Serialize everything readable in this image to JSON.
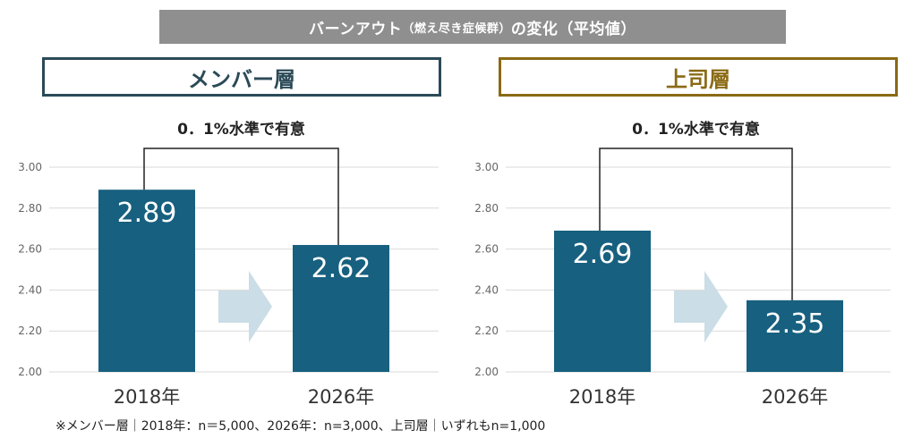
{
  "header": {
    "title_main": "バーンアウト",
    "title_small": "（燃え尽き症候群）",
    "title_tail": "の変化（平均値）"
  },
  "panels": {
    "member_label": "メンバー層",
    "boss_label": "上司層",
    "member_significance": "0．1%水準で有意",
    "boss_significance": "0．1%水準で有意"
  },
  "colors": {
    "bar": "#17607f",
    "arrow": "#cbdde6",
    "grid": "#d9d9d9",
    "member_accent": "#2b4a57",
    "boss_accent": "#8a6a14"
  },
  "chart_data": [
    {
      "type": "bar",
      "title": "メンバー層",
      "categories": [
        "2018年",
        "2026年"
      ],
      "values": [
        2.89,
        2.62
      ],
      "value_labels": [
        "2.89",
        "2.62"
      ],
      "ylim": [
        2.0,
        3.0
      ],
      "yticks": [
        "2.00",
        "2.20",
        "2.40",
        "2.60",
        "2.80",
        "3.00"
      ],
      "annotation": "0．1%水準で有意",
      "grid": true
    },
    {
      "type": "bar",
      "title": "上司層",
      "categories": [
        "2018年",
        "2026年"
      ],
      "values": [
        2.69,
        2.35
      ],
      "value_labels": [
        "2.69",
        "2.35"
      ],
      "ylim": [
        2.0,
        3.0
      ],
      "yticks": [
        "2.00",
        "2.20",
        "2.40",
        "2.60",
        "2.80",
        "3.00"
      ],
      "annotation": "0．1%水準で有意",
      "grid": true
    }
  ],
  "footnote": "※メンバー層｜2018年：n＝5,000、2026年：n=3,000、上司層｜いずれもn=1,000"
}
